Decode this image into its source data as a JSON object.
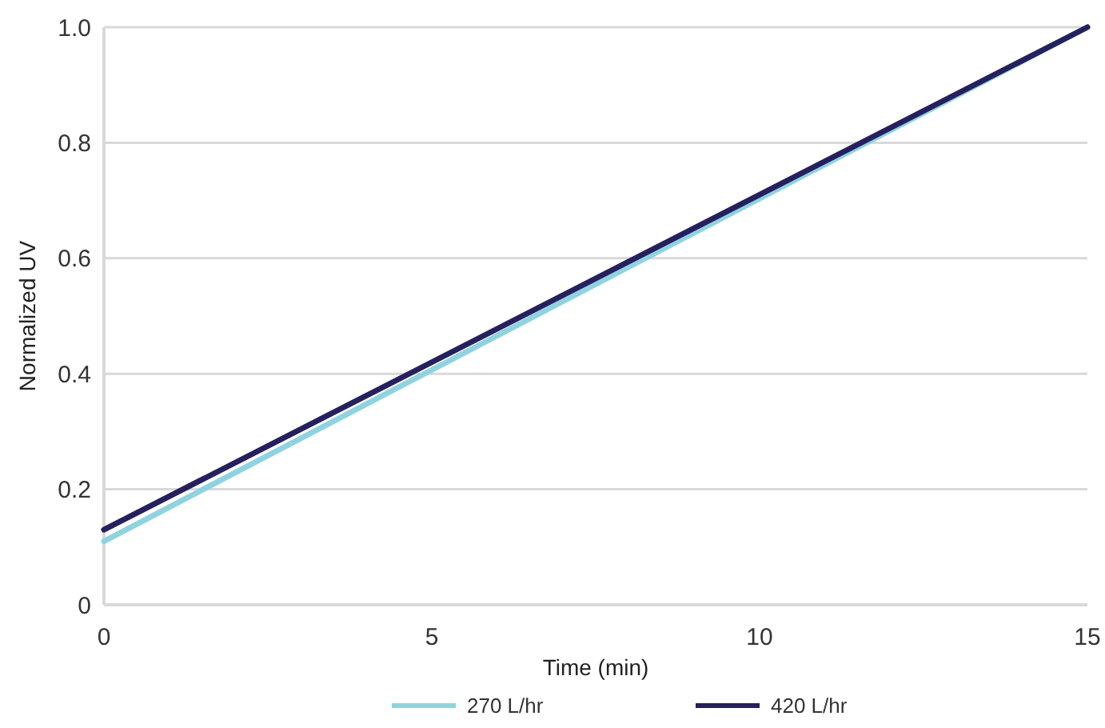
{
  "chart_data": {
    "type": "line",
    "xlabel": "Time (min)",
    "ylabel": "Normalized UV",
    "x": [
      0,
      15
    ],
    "series": [
      {
        "name": "270 L/hr",
        "color": "#8fd3e0",
        "values": [
          0.11,
          1.0
        ]
      },
      {
        "name": "420 L/hr",
        "color": "#25205e",
        "values": [
          0.13,
          1.0
        ]
      }
    ],
    "xlim": [
      0,
      15
    ],
    "xticks": [
      0,
      5,
      10,
      15
    ],
    "ylim": [
      0,
      1
    ],
    "yticks": [
      0,
      0.2,
      0.4,
      0.6,
      0.8,
      {
        "value": 1,
        "label": "1.0"
      }
    ],
    "grid": "y",
    "legend": "bottom",
    "marker": "none",
    "line_style": "solid"
  }
}
